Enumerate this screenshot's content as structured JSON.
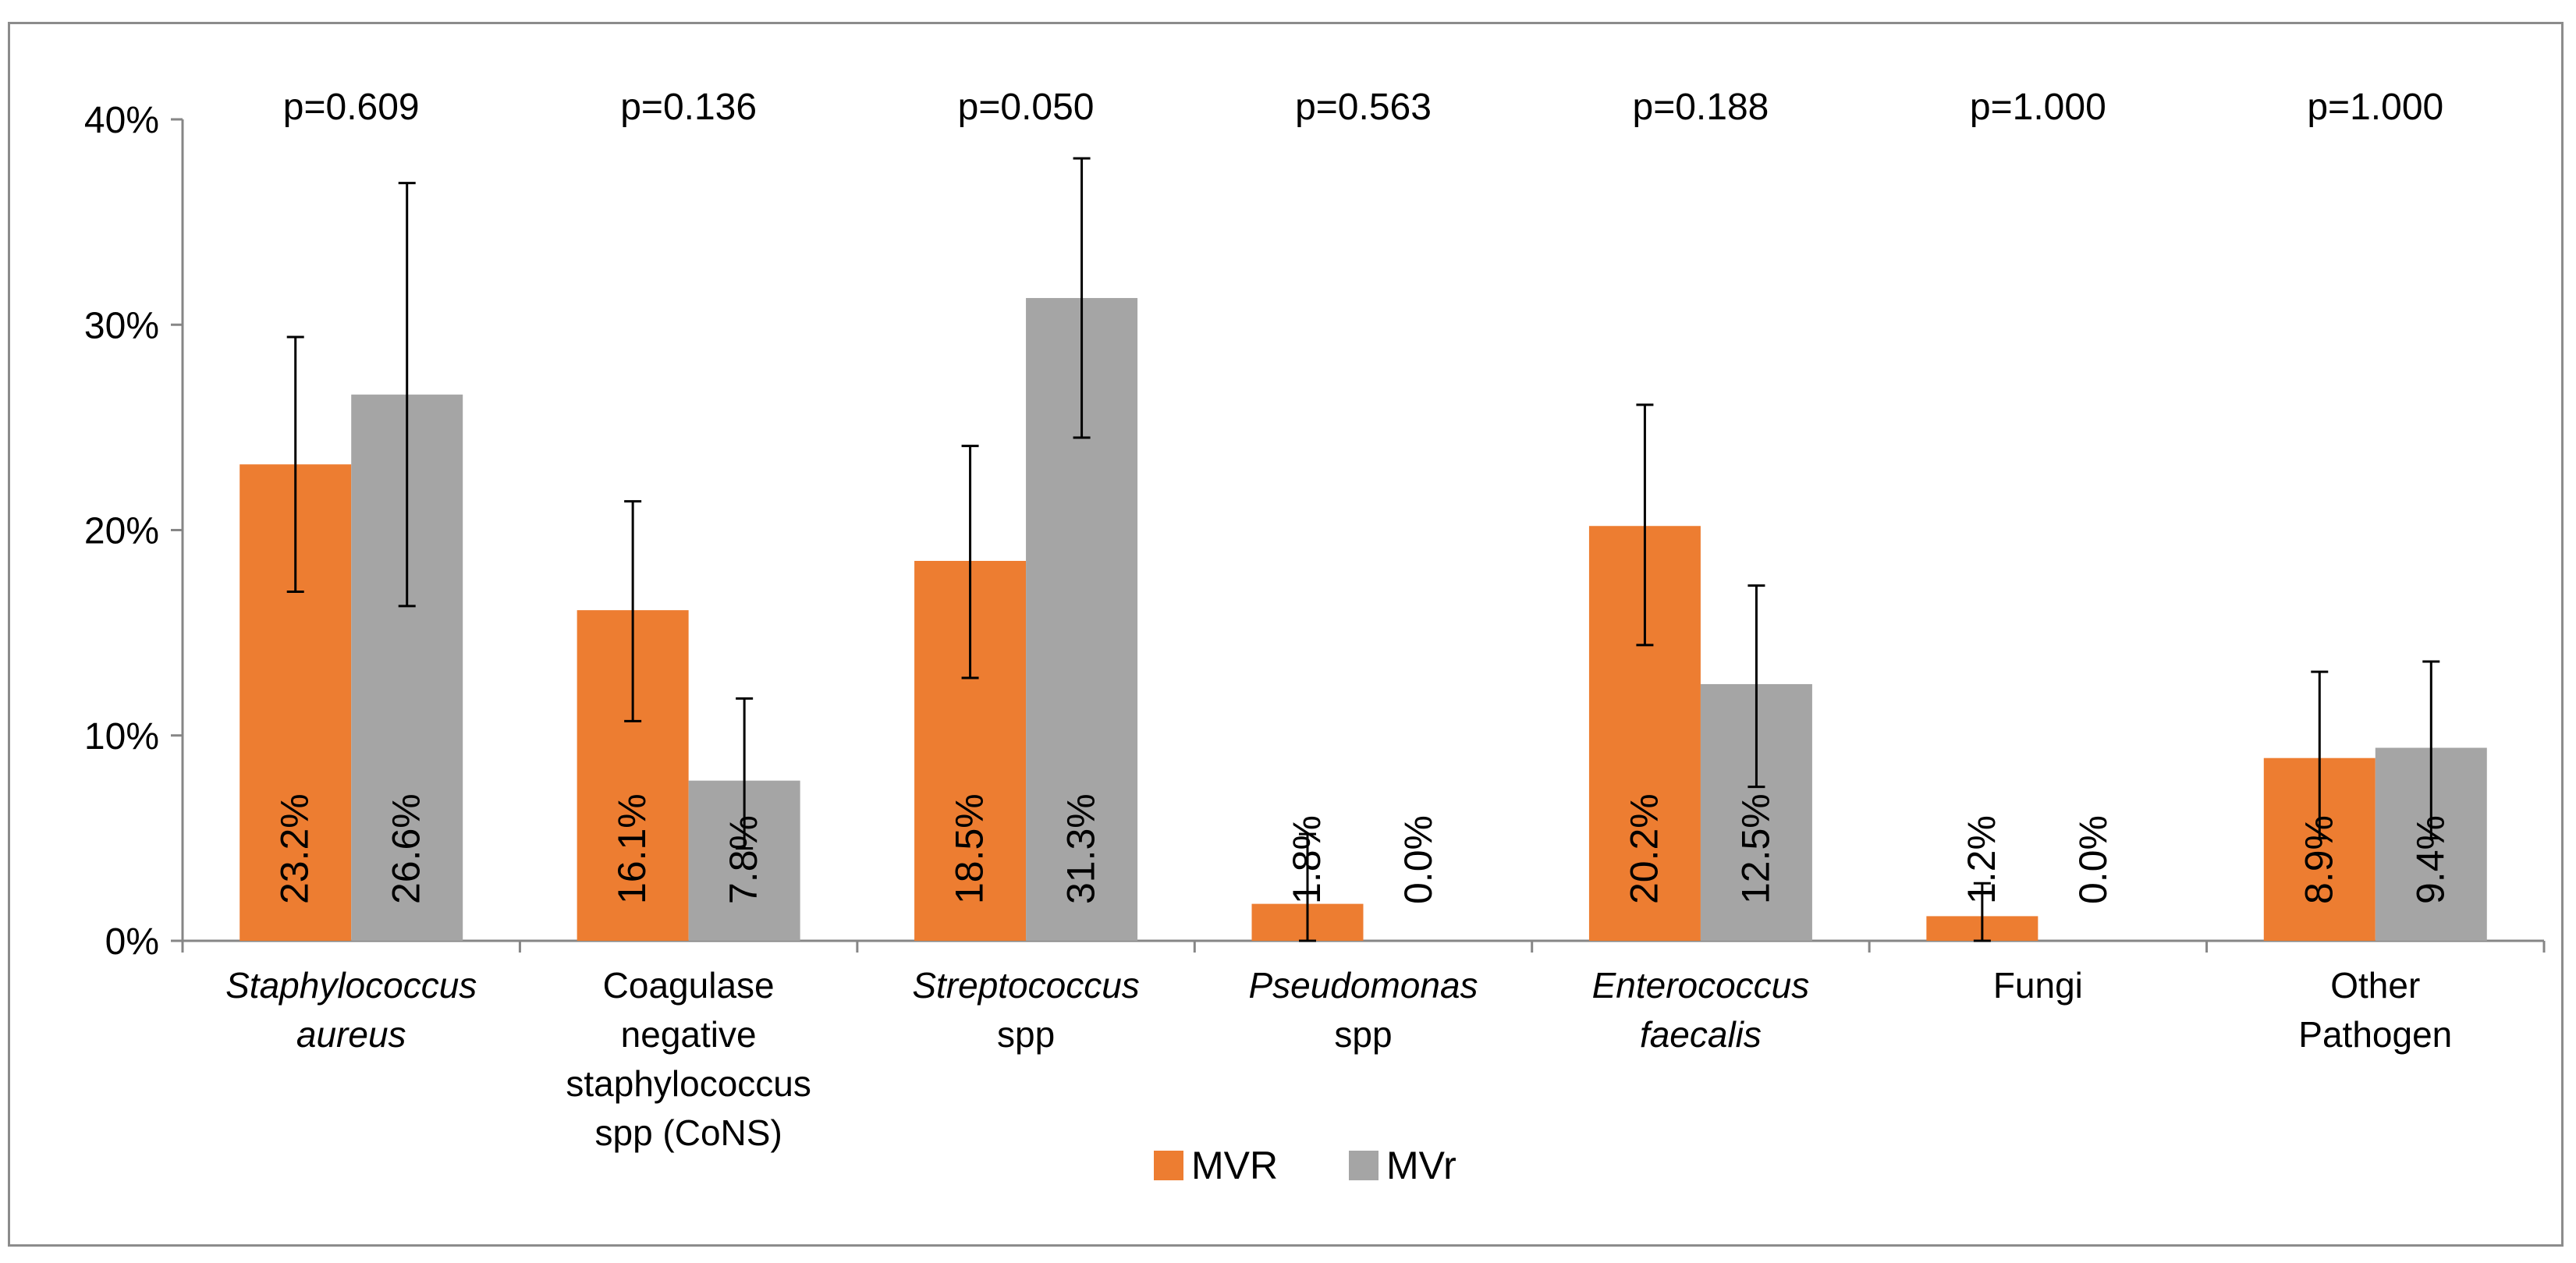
{
  "chart_data": {
    "type": "bar",
    "title": "",
    "xlabel": "",
    "ylabel": "",
    "ylim": [
      0,
      40
    ],
    "y_ticks": [
      {
        "value": 0,
        "label": "0%"
      },
      {
        "value": 10,
        "label": "10%"
      },
      {
        "value": 20,
        "label": "20%"
      },
      {
        "value": 30,
        "label": "30%"
      },
      {
        "value": 40,
        "label": "40%"
      }
    ],
    "grid": false,
    "legend_position": "bottom",
    "categories": [
      {
        "lines": [
          {
            "text": "Staphylococcus",
            "italic": true
          },
          {
            "text": "aureus",
            "italic": true
          }
        ],
        "p_value": "p=0.609"
      },
      {
        "lines": [
          {
            "text": "Coagulase",
            "italic": false
          },
          {
            "text": "negative",
            "italic": false
          },
          {
            "text": "staphylococcus",
            "italic": false
          },
          {
            "text": "spp (CoNS)",
            "italic": false
          }
        ],
        "p_value": "p=0.136"
      },
      {
        "lines": [
          {
            "text": "Streptococcus",
            "italic": true
          },
          {
            "text": "spp",
            "italic": false
          }
        ],
        "p_value": "p=0.050"
      },
      {
        "lines": [
          {
            "text": "Pseudomonas",
            "italic": true
          },
          {
            "text": "spp",
            "italic": false
          }
        ],
        "p_value": "p=0.563"
      },
      {
        "lines": [
          {
            "text": "Enterococcus",
            "italic": true
          },
          {
            "text": "faecalis",
            "italic": true
          }
        ],
        "p_value": "p=0.188"
      },
      {
        "lines": [
          {
            "text": "Fungi",
            "italic": false
          }
        ],
        "p_value": "p=1.000"
      },
      {
        "lines": [
          {
            "text": "Other",
            "italic": false
          },
          {
            "text": "Pathogen",
            "italic": false
          }
        ],
        "p_value": "p=1.000"
      }
    ],
    "series": [
      {
        "name": "MVR",
        "color": "#ED7D31",
        "values": [
          23.2,
          16.1,
          18.5,
          1.8,
          20.2,
          1.2,
          8.9
        ],
        "labels": [
          "23.2%",
          "16.1%",
          "18.5%",
          "1.8%",
          "20.2%",
          "1.2%",
          "8.9%"
        ],
        "error_low": [
          17.0,
          10.7,
          12.8,
          0.0,
          14.4,
          0.0,
          5.0
        ],
        "error_high": [
          29.4,
          21.4,
          24.1,
          5.2,
          26.1,
          2.8,
          13.1
        ]
      },
      {
        "name": "MVr",
        "color": "#A5A5A5",
        "values": [
          26.6,
          7.8,
          31.3,
          0.0,
          12.5,
          0.0,
          9.4
        ],
        "labels": [
          "26.6%",
          "7.8%",
          "31.3%",
          "0.0%",
          "12.5%",
          "0.0%",
          "9.4%"
        ],
        "error_low": [
          16.3,
          4.5,
          24.5,
          null,
          7.5,
          null,
          5.0
        ],
        "error_high": [
          36.9,
          11.8,
          38.1,
          null,
          17.3,
          null,
          13.6
        ]
      }
    ]
  }
}
